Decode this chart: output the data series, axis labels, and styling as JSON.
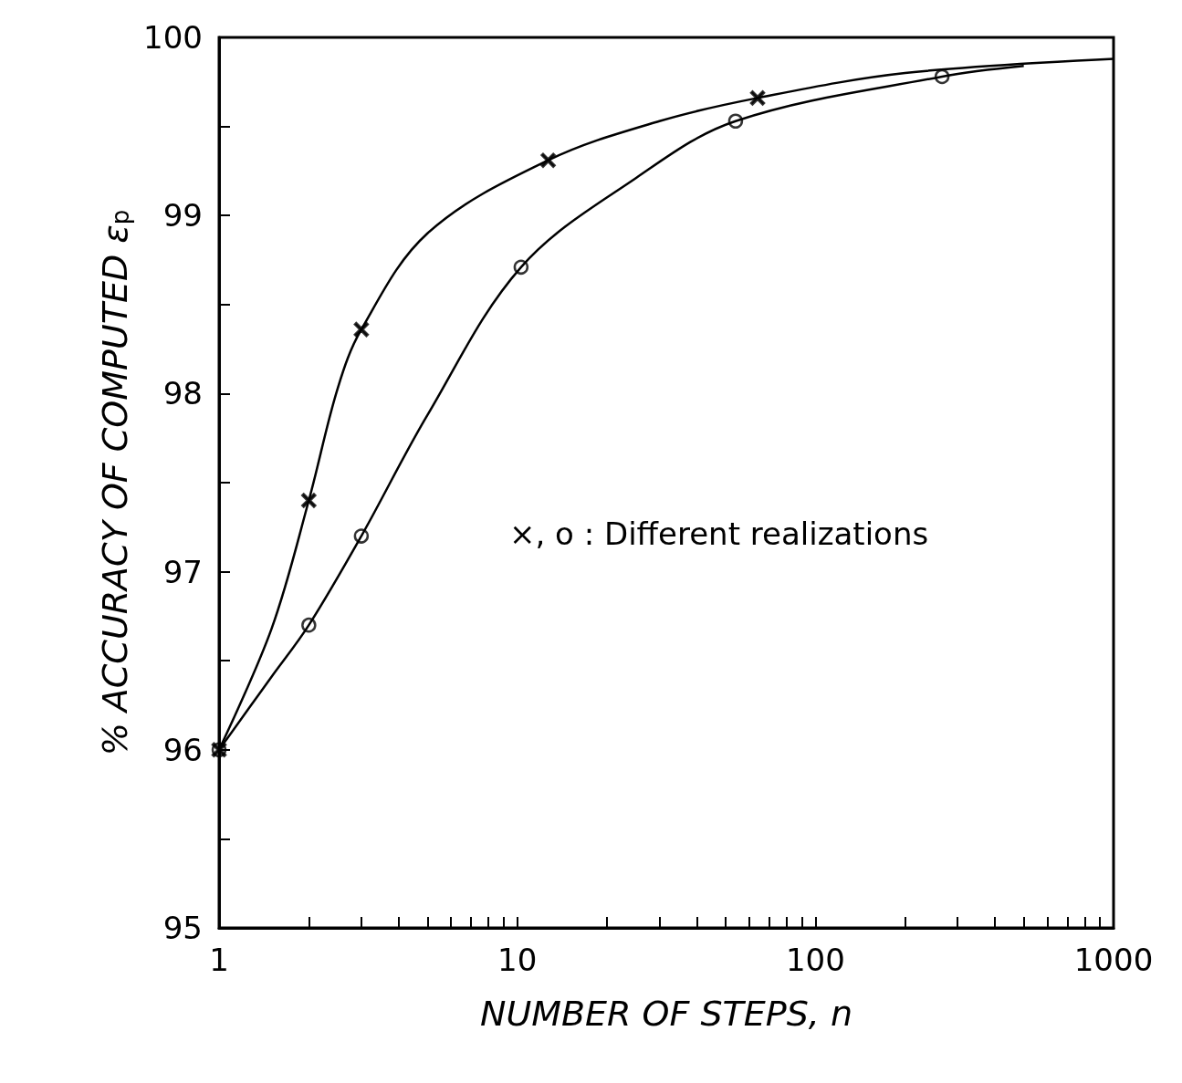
{
  "chart_data": {
    "type": "scatter",
    "xlabel": "NUMBER OF STEPS, n",
    "ylabel": "% ACCURACY OF COMPUTED ε$_{p}$",
    "log": "x",
    "xlim": [
      1,
      1000
    ],
    "ylim": [
      95,
      100
    ],
    "xticks": [
      1,
      {
        "value": 2,
        "label": null
      },
      {
        "value": 3,
        "label": null
      },
      {
        "value": 4,
        "label": null
      },
      {
        "value": 5,
        "label": null
      },
      {
        "value": 6,
        "label": null
      },
      {
        "value": 7,
        "label": null
      },
      {
        "value": 8,
        "label": null
      },
      {
        "value": 9,
        "label": null
      },
      10,
      {
        "value": 20,
        "label": null
      },
      {
        "value": 30,
        "label": null
      },
      {
        "value": 40,
        "label": null
      },
      {
        "value": 50,
        "label": null
      },
      {
        "value": 60,
        "label": null
      },
      {
        "value": 70,
        "label": null
      },
      {
        "value": 80,
        "label": null
      },
      {
        "value": 90,
        "label": null
      },
      100,
      {
        "value": 200,
        "label": null
      },
      {
        "value": 300,
        "label": null
      },
      {
        "value": 400,
        "label": null
      },
      {
        "value": 500,
        "label": null
      },
      {
        "value": 600,
        "label": null
      },
      {
        "value": 700,
        "label": null
      },
      {
        "value": 800,
        "label": null
      },
      {
        "value": 900,
        "label": null
      },
      1000
    ],
    "yticks": [
      95,
      {
        "value": 95.5,
        "label": null
      },
      96,
      {
        "value": 96.5,
        "label": null
      },
      97,
      {
        "value": 97.5,
        "label": null
      },
      98,
      {
        "value": 98.5,
        "label": null
      },
      99,
      {
        "value": 99.5,
        "label": null
      },
      100
    ],
    "grid": false,
    "annotations": [
      "×, o : Different realizations"
    ],
    "series": [
      {
        "marker": "circle",
        "color": "#000000",
        "x": [
          1,
          2,
          3,
          10.3,
          54,
          266
        ],
        "values": [
          96,
          96.7,
          97.2,
          98.71,
          99.53,
          99.78
        ]
      },
      {
        "marker": "cross",
        "color": "#000000",
        "x": [
          1,
          2,
          3,
          12.7,
          64
        ],
        "values": [
          96,
          97.4,
          98.36,
          99.31,
          99.66
        ]
      },
      {
        "type": "line",
        "marker": "none",
        "color": "#000000",
        "x": [
          1,
          1.5,
          2,
          2.5,
          3,
          5,
          12.7,
          30,
          64,
          200,
          1000
        ],
        "values": [
          96,
          96.68,
          97.4,
          98.03,
          98.36,
          98.9,
          99.31,
          99.53,
          99.66,
          99.8,
          99.88
        ]
      },
      {
        "type": "line",
        "marker": "none",
        "color": "#000000",
        "x": [
          1,
          1.5,
          2,
          3,
          5,
          10.3,
          25,
          54,
          266,
          500
        ],
        "values": [
          96,
          96.41,
          96.7,
          97.2,
          97.88,
          98.71,
          99.21,
          99.53,
          99.78,
          99.84
        ]
      }
    ]
  }
}
